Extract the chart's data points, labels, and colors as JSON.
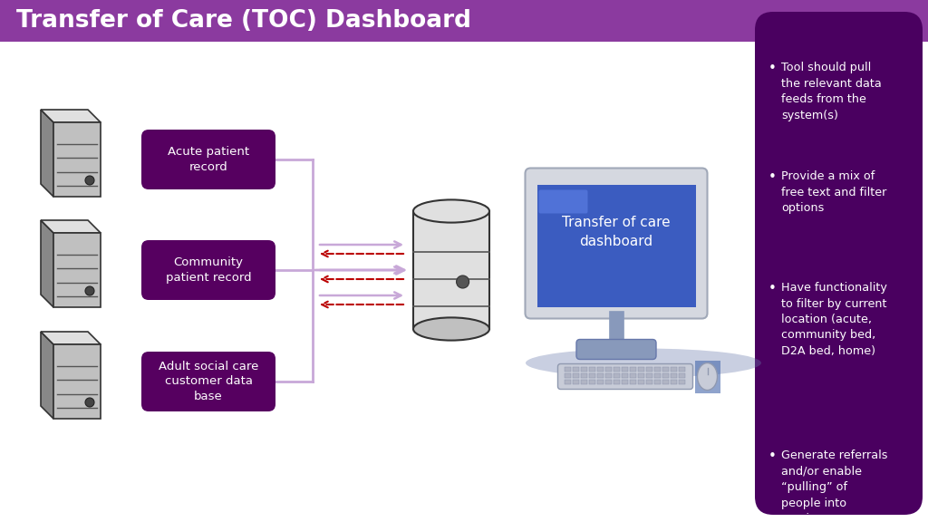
{
  "title": "Transfer of Care (TOC) Dashboard",
  "title_color": "#ffffff",
  "header_bg_color": "#8B3A9F",
  "main_bg_color": "#ffffff",
  "right_panel_bg": "#4A0060",
  "server_label_bg": "#560060",
  "server_labels": [
    "Acute patient\nrecord",
    "Community\npatient record",
    "Adult social care\ncustomer data\nbase"
  ],
  "dashboard_label": "Transfer of care\ndashboard",
  "bullet_points": [
    "Tool should pull\nthe relevant data\nfeeds from the\nsystem(s)",
    "Provide a mix of\nfree text and filter\noptions",
    "Have functionality\nto filter by current\nlocation (acute,\ncommunity bed,\nD2A bed, home)",
    "Generate referrals\nand/or enable\n“pulling” of\npeople into\nservices"
  ],
  "arrow_color_solid": "#C8A8D8",
  "arrow_color_dashed": "#BB0000",
  "screen_color": "#3B5CC0",
  "screen_text_color": "#ffffff",
  "server_body_light": "#E0E0E0",
  "server_body_mid": "#C0C0C0",
  "server_body_dark": "#888888",
  "server_stripe": "#555555"
}
